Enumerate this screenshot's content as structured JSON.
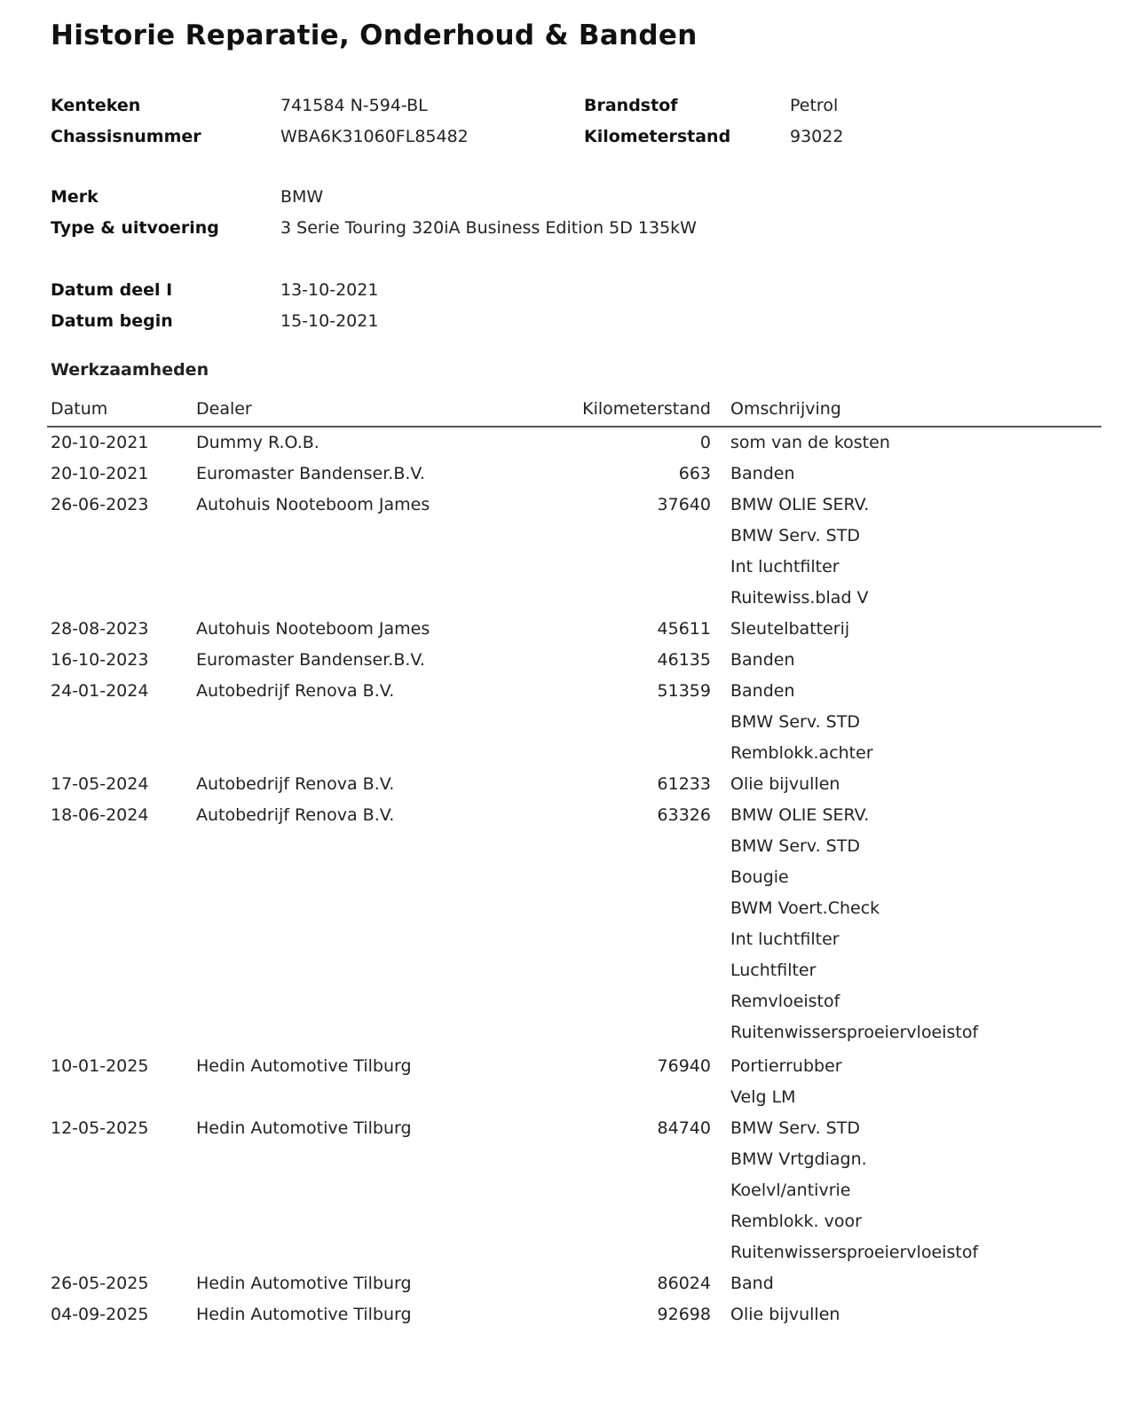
{
  "title": "Historie Reparatie, Onderhoud & Banden",
  "vehicle": {
    "kenteken_label": "Kenteken",
    "kenteken": "741584 N-594-BL",
    "chassis_label": "Chassisnummer",
    "chassis": "WBA6K31060FL85482",
    "brandstof_label": "Brandstof",
    "brandstof": "Petrol",
    "km_label": "Kilometerstand",
    "km": "93022",
    "merk_label": "Merk",
    "merk": "BMW",
    "type_label": "Type & uitvoering",
    "type": "3 Serie Touring 320iA Business Edition 5D 135kW",
    "datum_deel_label": "Datum deel I",
    "datum_deel": "13-10-2021",
    "datum_begin_label": "Datum begin",
    "datum_begin": "15-10-2021"
  },
  "werkzaamheden": {
    "heading": "Werkzaamheden",
    "columns": {
      "datum": "Datum",
      "dealer": "Dealer",
      "km": "Kilometerstand",
      "omschrijving": "Omschrijving"
    },
    "entries": [
      {
        "datum": "20-10-2021",
        "dealer": "Dummy R.O.B.",
        "km": "0",
        "items": [
          "som van de kosten"
        ]
      },
      {
        "datum": "20-10-2021",
        "dealer": "Euromaster Bandenser.B.V.",
        "km": "663",
        "items": [
          "Banden"
        ]
      },
      {
        "datum": "26-06-2023",
        "dealer": "Autohuis Nooteboom James",
        "km": "37640",
        "items": [
          "BMW OLIE SERV.",
          "BMW Serv. STD",
          "Int luchtfilter",
          "Ruitewiss.blad V"
        ]
      },
      {
        "datum": "28-08-2023",
        "dealer": "Autohuis Nooteboom James",
        "km": "45611",
        "items": [
          "Sleutelbatterij"
        ]
      },
      {
        "datum": "16-10-2023",
        "dealer": "Euromaster Bandenser.B.V.",
        "km": "46135",
        "items": [
          "Banden"
        ]
      },
      {
        "datum": "24-01-2024",
        "dealer": "Autobedrijf Renova B.V.",
        "km": "51359",
        "items": [
          "Banden",
          "BMW Serv. STD",
          "Remblokk.achter"
        ]
      },
      {
        "datum": "17-05-2024",
        "dealer": "Autobedrijf Renova B.V.",
        "km": "61233",
        "items": [
          "Olie bijvullen"
        ]
      },
      {
        "datum": "18-06-2024",
        "dealer": "Autobedrijf Renova B.V.",
        "km": "63326",
        "items": [
          "BMW OLIE SERV.",
          "BMW Serv. STD",
          "Bougie",
          "BWM Voert.Check",
          "Int luchtfilter",
          "Luchtfilter",
          "Remvloeistof",
          "Ruitenwissersproeiervloeistof"
        ]
      },
      {
        "datum": "10-01-2025",
        "dealer": "Hedin Automotive Tilburg",
        "km": "76940",
        "items": [
          "Portierrubber",
          "Velg LM"
        ]
      },
      {
        "datum": "12-05-2025",
        "dealer": "Hedin Automotive Tilburg",
        "km": "84740",
        "items": [
          "BMW Serv. STD",
          "BMW Vrtgdiagn.",
          "Koelvl/antivrie",
          "Remblokk. voor",
          "Ruitenwissersproeiervloeistof"
        ]
      },
      {
        "datum": "26-05-2025",
        "dealer": "Hedin Automotive Tilburg",
        "km": "86024",
        "items": [
          "Band"
        ]
      },
      {
        "datum": "04-09-2025",
        "dealer": "Hedin Automotive Tilburg",
        "km": "92698",
        "items": [
          "Olie bijvullen"
        ]
      }
    ]
  }
}
